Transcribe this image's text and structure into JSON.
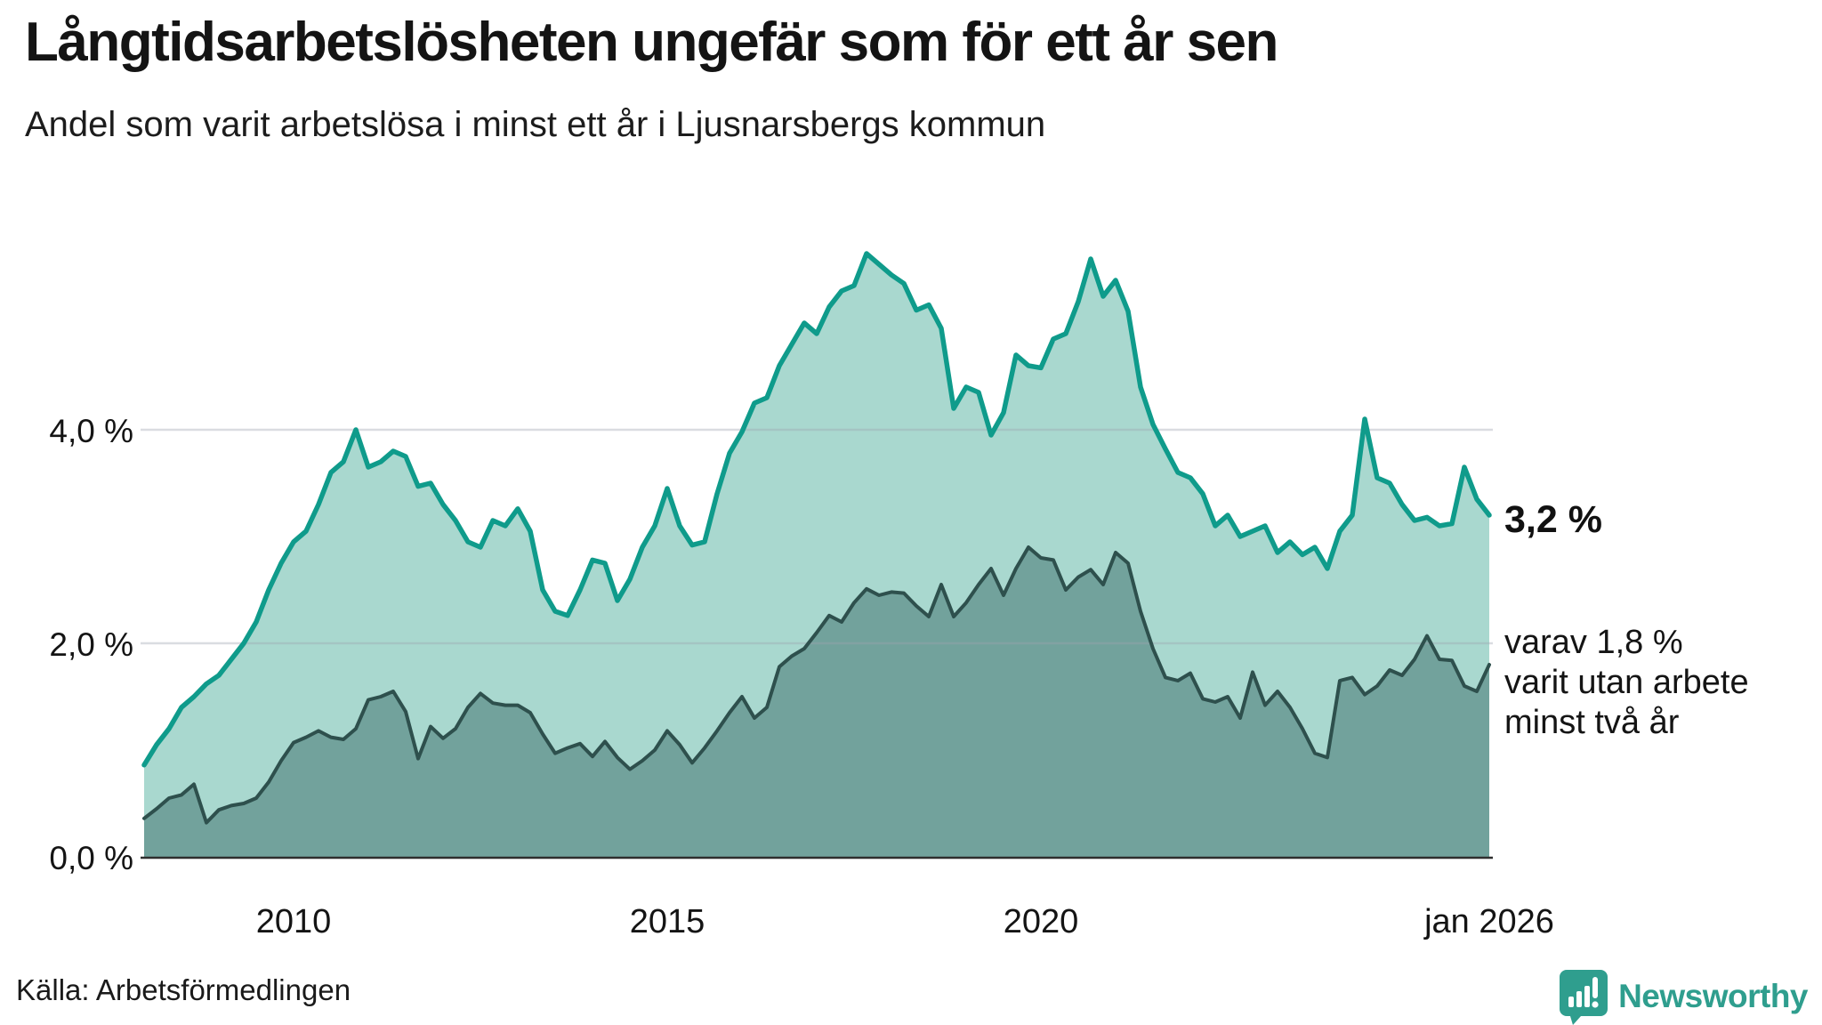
{
  "header": {
    "title": "Långtidsarbetslösheten ungefär som för ett år sen",
    "subtitle": "Andel som varit arbetslösa i minst ett år i Ljusnarsbergs kommun"
  },
  "annotations": {
    "latest_total": "3,2 %",
    "latest_secondary_text": "varav 1,8 %\nvarit utan arbete\nminst två år"
  },
  "footer": {
    "source": "Källa: Arbetsförmedlingen",
    "brand_name": "Newsworthy",
    "brand_color": "#2F9E8E"
  },
  "colors": {
    "total_line": "#0F9B8B",
    "total_fill": "#A9D8CF",
    "two_year_line": "#2E504D",
    "two_year_fill": "#72A29C",
    "gridline": "rgba(158,163,175,0.38)",
    "axis_line": "#2E2E2E",
    "text": "#141414"
  },
  "chart_data": {
    "type": "area",
    "unit": "%",
    "title": "Långtidsarbetslösheten ungefär som för ett år sen",
    "subtitle": "Andel som varit arbetslösa i minst ett år i Ljusnarsbergs kommun",
    "x_start_year": 2008.0,
    "x_end_year": 2026.0,
    "points_per_year": 6,
    "ylim": [
      0,
      6.2
    ],
    "grid": "horizontal-only",
    "legend_position": "right-annotations",
    "x_ticks": [
      {
        "label": "2010",
        "t": 2010.0
      },
      {
        "label": "2015",
        "t": 2015.0
      },
      {
        "label": "2020",
        "t": 2020.0
      },
      {
        "label": "jan 2026",
        "t": 2026.0
      }
    ],
    "y_ticks": [
      {
        "label": "4,0 %",
        "v": 4.0,
        "gridline": true
      },
      {
        "label": "2,0 %",
        "v": 2.0,
        "gridline": true
      },
      {
        "label": "0,0 %",
        "v": 0.0,
        "gridline": false
      }
    ],
    "series": [
      {
        "name": "Arbetslösa minst ett år",
        "latest_value": 3.2,
        "latest_label": "3,2 %",
        "values": [
          0.86,
          1.05,
          1.2,
          1.4,
          1.5,
          1.62,
          1.7,
          1.85,
          2.0,
          2.2,
          2.5,
          2.75,
          2.95,
          3.05,
          3.3,
          3.6,
          3.7,
          4.0,
          3.65,
          3.7,
          3.8,
          3.75,
          3.47,
          3.5,
          3.3,
          3.15,
          2.95,
          2.9,
          3.15,
          3.1,
          3.26,
          3.05,
          2.5,
          2.3,
          2.26,
          2.5,
          2.78,
          2.75,
          2.4,
          2.6,
          2.9,
          3.1,
          3.45,
          3.1,
          2.92,
          2.95,
          3.4,
          3.78,
          3.98,
          4.25,
          4.3,
          4.6,
          4.8,
          5.0,
          4.9,
          5.15,
          5.3,
          5.35,
          5.65,
          5.55,
          5.45,
          5.37,
          5.12,
          5.17,
          4.95,
          4.2,
          4.4,
          4.35,
          3.95,
          4.16,
          4.7,
          4.6,
          4.58,
          4.85,
          4.9,
          5.2,
          5.6,
          5.25,
          5.4,
          5.11,
          4.4,
          4.05,
          3.82,
          3.6,
          3.55,
          3.4,
          3.1,
          3.2,
          3.0,
          3.05,
          3.1,
          2.85,
          2.95,
          2.83,
          2.9,
          2.7,
          3.05,
          3.2,
          4.1,
          3.55,
          3.5,
          3.3,
          3.15,
          3.18,
          3.1,
          3.12,
          3.65,
          3.35,
          3.2
        ]
      },
      {
        "name": "Varit utan arbete minst två år",
        "latest_value": 1.8,
        "latest_label": "1,8 %",
        "values": [
          0.36,
          0.45,
          0.55,
          0.58,
          0.68,
          0.32,
          0.44,
          0.48,
          0.5,
          0.55,
          0.7,
          0.9,
          1.07,
          1.12,
          1.18,
          1.12,
          1.1,
          1.2,
          1.47,
          1.5,
          1.55,
          1.36,
          0.92,
          1.22,
          1.11,
          1.2,
          1.4,
          1.53,
          1.44,
          1.42,
          1.42,
          1.35,
          1.15,
          0.97,
          1.02,
          1.06,
          0.94,
          1.08,
          0.93,
          0.82,
          0.9,
          1.0,
          1.18,
          1.05,
          0.88,
          1.02,
          1.18,
          1.35,
          1.5,
          1.3,
          1.4,
          1.78,
          1.88,
          1.95,
          2.1,
          2.26,
          2.2,
          2.38,
          2.51,
          2.45,
          2.48,
          2.47,
          2.35,
          2.25,
          2.55,
          2.25,
          2.38,
          2.55,
          2.7,
          2.45,
          2.7,
          2.9,
          2.8,
          2.78,
          2.5,
          2.62,
          2.69,
          2.55,
          2.85,
          2.75,
          2.3,
          1.95,
          1.68,
          1.65,
          1.72,
          1.48,
          1.45,
          1.5,
          1.3,
          1.73,
          1.42,
          1.55,
          1.4,
          1.2,
          0.97,
          0.93,
          1.65,
          1.68,
          1.52,
          1.6,
          1.75,
          1.7,
          1.85,
          2.07,
          1.85,
          1.84,
          1.6,
          1.55,
          1.8
        ]
      }
    ]
  }
}
